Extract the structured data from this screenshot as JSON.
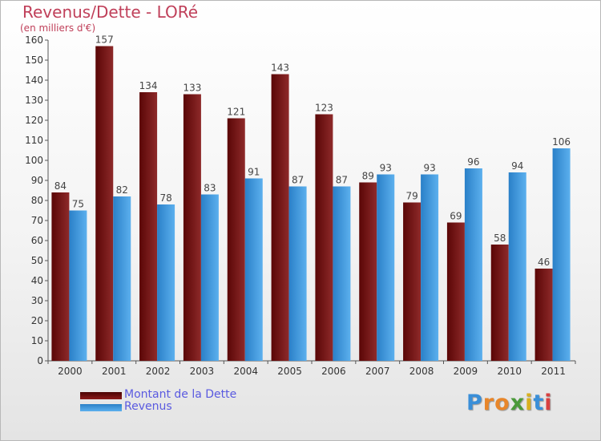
{
  "chart_data": {
    "type": "bar",
    "title": "Revenus/Dette - LORé",
    "subtitle": "(en milliers d'€)",
    "categories": [
      "2000",
      "2001",
      "2002",
      "2003",
      "2004",
      "2005",
      "2006",
      "2007",
      "2008",
      "2009",
      "2010",
      "2011"
    ],
    "series": [
      {
        "name": "Montant de la Dette",
        "color": "#8b1a1a",
        "values": [
          84,
          157,
          134,
          133,
          121,
          143,
          123,
          89,
          79,
          69,
          58,
          46
        ]
      },
      {
        "name": "Revenus",
        "color": "#3d95db",
        "values": [
          75,
          82,
          78,
          83,
          91,
          87,
          87,
          93,
          93,
          96,
          94,
          106
        ]
      }
    ],
    "ylim": [
      0,
      160
    ],
    "yticks": [
      0,
      10,
      20,
      30,
      40,
      50,
      60,
      70,
      80,
      90,
      100,
      110,
      120,
      130,
      140,
      150,
      160
    ],
    "grid": false,
    "legend_position": "bottom-left"
  },
  "brand": {
    "letters": [
      "P",
      "r",
      "o",
      "x",
      "i",
      "t",
      "i"
    ],
    "colors": [
      "#3a8fd8",
      "#e8862a",
      "#e8862a",
      "#4a9a3a",
      "#d8b020",
      "#3a8fd8",
      "#d84040"
    ]
  }
}
